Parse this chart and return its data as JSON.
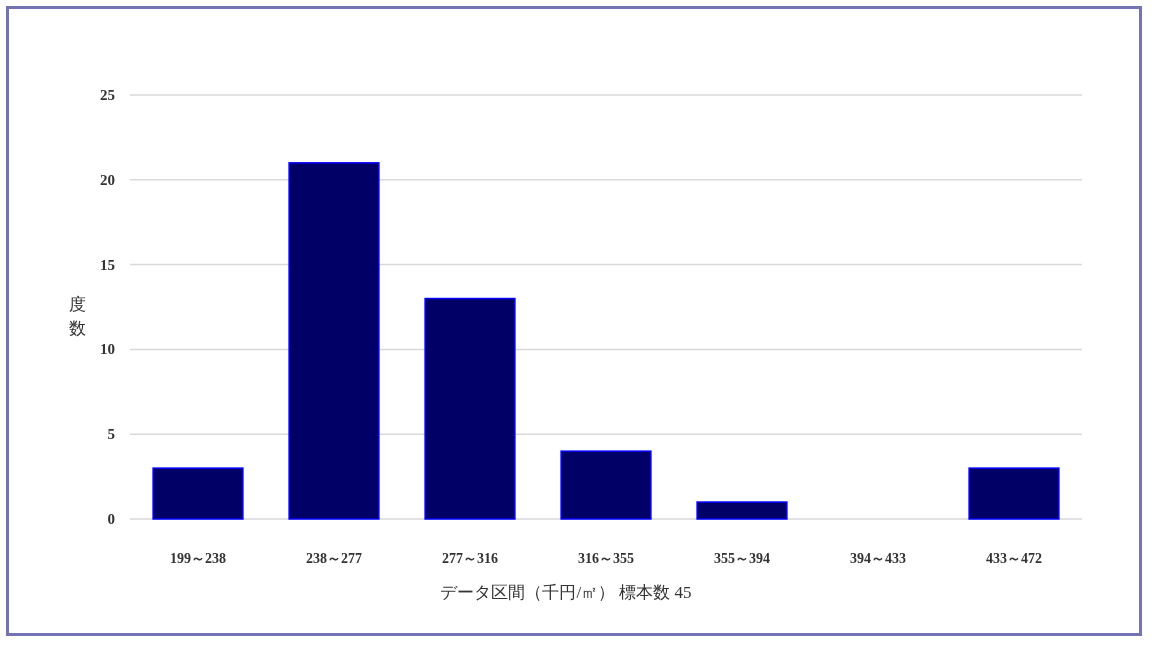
{
  "chart_data": {
    "type": "bar",
    "ylabel": "度数",
    "xlabel": "データ区間（千円/㎡） 標本数 45",
    "categories": [
      "199～238",
      "238～277",
      "277～316",
      "316～355",
      "355～394",
      "394～433",
      "433～472"
    ],
    "values": [
      3,
      21,
      13,
      4,
      1,
      0,
      3
    ],
    "color": "#000066",
    "ylim": [
      0,
      25
    ],
    "yticks": [
      0,
      5,
      10,
      15,
      20,
      25
    ],
    "grid": "y"
  }
}
